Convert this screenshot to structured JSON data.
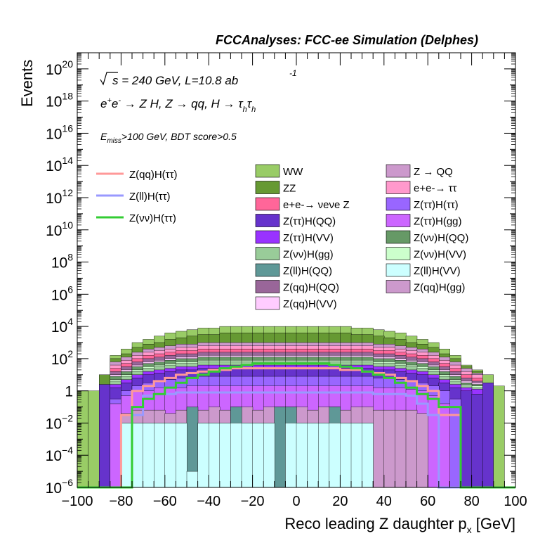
{
  "header": {
    "title": "FCCAnalyses: FCC-ee Simulation (Delphes)"
  },
  "annotations": {
    "sqrt_s": "s = 240 GeV, L=10.8 ab",
    "lumi_exp": "-1",
    "process": "e+e- → Z H, Z → qq, H → τhτh",
    "cuts": "Emiss>100 GeV, BDT score>0.5"
  },
  "chart_data": {
    "type": "histogram",
    "stacked": true,
    "xlabel": "Reco leading Z daughter px [GeV]",
    "ylabel": "Events",
    "xlim": [
      -100,
      100
    ],
    "ylim": [
      1e-06,
      1e+21
    ],
    "log_y": true,
    "bin_width": 5,
    "x_ticks": [
      "−100",
      "−80",
      "−60",
      "−40",
      "−20",
      "0",
      "20",
      "40",
      "60",
      "80",
      "100"
    ],
    "y_ticks": [
      {
        "base": "10",
        "exp": "−6",
        "value": 1e-06
      },
      {
        "base": "10",
        "exp": "−4",
        "value": 0.0001
      },
      {
        "base": "10",
        "exp": "−2",
        "value": 0.01
      },
      {
        "base": "1",
        "exp": "",
        "value": 1
      },
      {
        "base": "10",
        "exp": "2",
        "value": 100.0
      },
      {
        "base": "10",
        "exp": "4",
        "value": 10000.0
      },
      {
        "base": "10",
        "exp": "6",
        "value": 1000000.0
      },
      {
        "base": "10",
        "exp": "8",
        "value": 100000000.0
      },
      {
        "base": "10",
        "exp": "10",
        "value": 10000000000.0
      },
      {
        "base": "10",
        "exp": "12",
        "value": 1000000000000.0
      },
      {
        "base": "10",
        "exp": "14",
        "value": 100000000000000.0
      },
      {
        "base": "10",
        "exp": "16",
        "value": 1e+16
      },
      {
        "base": "10",
        "exp": "18",
        "value": 1e+18
      },
      {
        "base": "10",
        "exp": "20",
        "value": 1e+20
      }
    ],
    "stack_layers_log10_top": [
      {
        "name": "Z(ll)H(VV)",
        "color": "#ccffff",
        "top": [
          -6,
          -6,
          -6,
          -6,
          -2,
          -2,
          -2,
          -2,
          -2,
          -2,
          -5,
          -2,
          -2,
          -2,
          -2,
          -2,
          -2,
          -2,
          -6,
          -2,
          -2,
          -2,
          -2,
          -2,
          -2,
          -2,
          -2,
          -6,
          -6,
          -6,
          -6,
          -6,
          -6,
          -6,
          -6,
          -6,
          -6,
          -6,
          -6,
          -6
        ],
        "start_bin": 0
      },
      {
        "name": "Z(ll)H(QQ)",
        "color": "#5f9897",
        "top": [
          -6,
          -6,
          -6,
          -6,
          -2,
          -2,
          -2,
          -2,
          -2,
          -2,
          -1,
          -2,
          -2,
          -2,
          -1,
          -2,
          -2,
          -2,
          -1,
          -1,
          -2,
          -2,
          -2,
          -1,
          -2,
          -2,
          -2,
          -6,
          -6,
          -6,
          -6,
          -6,
          -6,
          -6,
          -6,
          -6,
          -6,
          -6,
          -6,
          -6
        ]
      },
      {
        "name": "Z(qq)H(gg)",
        "color": "#cc99cc",
        "top": [
          -6,
          -6,
          -6,
          -6,
          -1.4,
          -1.2,
          -1.2,
          -1.2,
          -1.4,
          -1.2,
          -1.2,
          -1.2,
          -1.0,
          -1.2,
          -1.0,
          -1.0,
          -1.2,
          -1.0,
          -1.0,
          -1.0,
          -1.0,
          -1.2,
          -1.0,
          -1.0,
          -1.2,
          -1.0,
          -1.0,
          -1.2,
          -1.2,
          -1.2,
          -1.2,
          -1.4,
          -6,
          -6,
          -6,
          -6,
          -6,
          -6,
          -6,
          -6
        ]
      },
      {
        "name": "Z(ττ)H(gg)",
        "color": "#cc66ff",
        "top": [
          -6,
          -6,
          -6,
          -0.8,
          -0.3,
          0.0,
          0.0,
          0.2,
          0.2,
          0.2,
          0.3,
          0.3,
          0.3,
          0.3,
          0.3,
          0.3,
          0.3,
          0.3,
          0.3,
          0.3,
          0.3,
          0.3,
          0.3,
          0.3,
          0.3,
          0.3,
          0.3,
          0.2,
          0.2,
          0.2,
          0.1,
          0.0,
          -0.3,
          -0.8,
          -6,
          -6,
          -6,
          -6,
          -6,
          -6
        ]
      },
      {
        "name": "Z(ττ)H(ττ)",
        "color": "#9966ff",
        "top": [
          -6,
          -6,
          -6,
          -0.5,
          0.0,
          0.3,
          0.5,
          0.6,
          0.7,
          0.8,
          0.8,
          0.9,
          0.9,
          0.9,
          0.9,
          0.9,
          0.9,
          0.9,
          0.9,
          0.9,
          0.9,
          0.9,
          0.9,
          0.9,
          0.9,
          0.9,
          0.9,
          0.8,
          0.8,
          0.7,
          0.6,
          0.5,
          0.3,
          0.0,
          -0.5,
          -6,
          -6,
          -6,
          -6,
          -6
        ]
      },
      {
        "name": "Z(ττ)H(QQ)",
        "color": "#6633cc",
        "top": [
          -6,
          -6,
          -6,
          0.2,
          0.5,
          0.8,
          1.0,
          1.1,
          1.2,
          1.3,
          1.3,
          1.4,
          1.4,
          1.4,
          1.4,
          1.4,
          1.4,
          1.4,
          1.4,
          1.4,
          1.4,
          1.4,
          1.4,
          1.4,
          1.4,
          1.4,
          1.4,
          1.3,
          1.3,
          1.2,
          1.1,
          1.0,
          0.8,
          0.5,
          0.2,
          0.0,
          -0.2,
          -6,
          -6,
          -6
        ]
      },
      {
        "name": "Z(ττ)H(VV)",
        "color": "#9933ff",
        "top": [
          -6,
          -6,
          -6,
          0.4,
          0.7,
          1.0,
          1.2,
          1.3,
          1.4,
          1.5,
          1.5,
          1.6,
          1.6,
          1.6,
          1.6,
          1.6,
          1.6,
          1.6,
          1.6,
          1.6,
          1.6,
          1.6,
          1.6,
          1.6,
          1.6,
          1.6,
          1.6,
          1.5,
          1.5,
          1.4,
          1.3,
          1.2,
          1.0,
          0.7,
          0.4,
          0.2,
          0.1,
          -6,
          -6,
          -6
        ]
      },
      {
        "name": "Z(νν)H(gg)",
        "color": "#99cc99",
        "top": [
          -6,
          -6,
          -6,
          0.6,
          0.9,
          1.2,
          1.4,
          1.5,
          1.6,
          1.7,
          1.7,
          1.8,
          1.8,
          1.8,
          1.8,
          1.8,
          1.8,
          1.8,
          1.8,
          1.8,
          1.8,
          1.8,
          1.8,
          1.8,
          1.8,
          1.8,
          1.8,
          1.7,
          1.7,
          1.6,
          1.5,
          1.4,
          1.2,
          0.9,
          0.6,
          0.3,
          0.2,
          -6,
          -6,
          -6
        ]
      },
      {
        "name": "Z(νν)H(VV)",
        "color": "#ccffcc",
        "top": [
          -6,
          -6,
          -6,
          0.7,
          1.0,
          1.3,
          1.5,
          1.6,
          1.7,
          1.8,
          1.8,
          1.9,
          1.9,
          1.9,
          1.9,
          1.9,
          1.9,
          1.9,
          1.9,
          1.9,
          1.9,
          1.9,
          1.9,
          1.9,
          1.9,
          1.9,
          1.9,
          1.8,
          1.8,
          1.7,
          1.6,
          1.5,
          1.3,
          1.0,
          0.7,
          0.4,
          0.3,
          -6,
          -6,
          -6
        ]
      },
      {
        "name": "Z(νν)H(QQ)",
        "color": "#669966",
        "top": [
          -6,
          -6,
          -6,
          0.9,
          1.2,
          1.5,
          1.7,
          1.8,
          1.9,
          2.0,
          2.0,
          2.1,
          2.1,
          2.1,
          2.1,
          2.1,
          2.1,
          2.1,
          2.1,
          2.1,
          2.1,
          2.1,
          2.1,
          2.1,
          2.1,
          2.1,
          2.1,
          2.0,
          2.0,
          1.9,
          1.8,
          1.7,
          1.5,
          1.2,
          0.9,
          0.5,
          0.4,
          -6,
          -6,
          -6
        ]
      },
      {
        "name": "Z(qq)H(VV)",
        "color": "#ffccff",
        "top": [
          -6,
          -6,
          -6,
          1.0,
          1.3,
          1.6,
          1.8,
          1.9,
          2.0,
          2.1,
          2.1,
          2.2,
          2.2,
          2.2,
          2.2,
          2.2,
          2.2,
          2.2,
          2.2,
          2.2,
          2.2,
          2.2,
          2.2,
          2.2,
          2.2,
          2.2,
          2.2,
          2.1,
          2.1,
          2.0,
          1.9,
          1.8,
          1.6,
          1.3,
          1.0,
          0.6,
          0.5,
          -6,
          -6,
          -6
        ]
      },
      {
        "name": "Z(qq)H(QQ)",
        "color": "#996699",
        "top": [
          -6,
          -6,
          -6,
          1.2,
          1.5,
          1.8,
          2.0,
          2.1,
          2.2,
          2.3,
          2.3,
          2.4,
          2.4,
          2.4,
          2.4,
          2.4,
          2.4,
          2.4,
          2.4,
          2.4,
          2.4,
          2.4,
          2.4,
          2.4,
          2.4,
          2.4,
          2.4,
          2.3,
          2.3,
          2.2,
          2.1,
          2.0,
          1.8,
          1.5,
          1.2,
          0.8,
          0.6,
          -6,
          -6,
          -6
        ]
      },
      {
        "name": "e+e-→ νeνe Z",
        "color": "#ff6699",
        "top": [
          -6,
          -6,
          -6,
          1.4,
          1.7,
          2.0,
          2.2,
          2.3,
          2.4,
          2.5,
          2.5,
          2.6,
          2.6,
          2.6,
          2.6,
          2.6,
          2.6,
          2.6,
          2.6,
          2.6,
          2.6,
          2.6,
          2.6,
          2.6,
          2.6,
          2.6,
          2.6,
          2.5,
          2.5,
          2.4,
          2.3,
          2.2,
          2.0,
          1.7,
          1.4,
          1.0,
          0.8,
          -6,
          -6,
          -6
        ]
      },
      {
        "name": "e+e-→ ττ",
        "color": "#ff99cc",
        "top": [
          -6,
          -6,
          -6,
          1.6,
          1.9,
          2.2,
          2.4,
          2.5,
          2.6,
          2.7,
          2.7,
          2.8,
          2.8,
          2.8,
          2.8,
          2.8,
          2.8,
          2.8,
          2.8,
          2.8,
          2.8,
          2.8,
          2.8,
          2.8,
          2.8,
          2.8,
          2.8,
          2.7,
          2.7,
          2.6,
          2.5,
          2.4,
          2.2,
          1.9,
          1.6,
          1.2,
          1.0,
          -6,
          -6,
          -6
        ]
      },
      {
        "name": "Z → QQ",
        "color": "#cc99cc",
        "top": [
          -6,
          -6,
          -6,
          1.8,
          2.1,
          2.4,
          2.6,
          2.7,
          2.8,
          2.9,
          2.9,
          3.0,
          3.0,
          3.0,
          3.0,
          3.0,
          3.0,
          3.0,
          3.0,
          3.0,
          3.0,
          3.0,
          3.0,
          3.0,
          3.0,
          3.0,
          3.0,
          2.9,
          2.9,
          2.8,
          2.7,
          2.6,
          2.4,
          2.1,
          1.8,
          1.4,
          1.1,
          -6,
          -6,
          -6
        ]
      },
      {
        "name": "ZZ",
        "color": "#669933",
        "top": [
          -6,
          -6,
          -6,
          2.0,
          2.3,
          2.7,
          2.9,
          3.0,
          3.2,
          3.3,
          3.4,
          3.5,
          3.5,
          3.6,
          3.6,
          3.6,
          3.6,
          3.6,
          3.6,
          3.6,
          3.6,
          3.6,
          3.6,
          3.6,
          3.6,
          3.5,
          3.5,
          3.4,
          3.3,
          3.2,
          3.0,
          2.9,
          2.7,
          2.3,
          2.0,
          1.5,
          1.2,
          -6,
          -6,
          -6
        ]
      },
      {
        "name": "WW",
        "color": "#99cc66",
        "top": [
          -6,
          -6,
          -6,
          2.2,
          2.6,
          3.0,
          3.2,
          3.4,
          3.6,
          3.7,
          3.8,
          3.9,
          3.9,
          4.0,
          4.0,
          4.0,
          4.0,
          4.0,
          4.0,
          4.0,
          4.0,
          4.0,
          4.0,
          4.0,
          4.0,
          3.9,
          3.9,
          3.8,
          3.7,
          3.6,
          3.4,
          3.2,
          3.0,
          2.6,
          2.2,
          1.6,
          1.3,
          -6,
          -6,
          -6
        ]
      }
    ],
    "edge_bins_log10": {
      "WW_bin0": 0.0,
      "WW_bin1": 0.0,
      "ZZ_bin2": 1.0,
      "Ztt_bin2": 0.4,
      "WW_bin37": 1.0,
      "ZZ_bin37": 0.5,
      "WW_bin38": 0.3
    },
    "legend_left": [
      {
        "label": "Z(qq)H(ττ)",
        "color": "#ff9999"
      },
      {
        "label": "Z(ll)H(ττ)",
        "color": "#9999ff"
      },
      {
        "label": "Z(νν)H(ττ)",
        "color": "#33cc33"
      }
    ],
    "legend_mid": [
      {
        "label": "WW",
        "color": "#99cc66"
      },
      {
        "label": "ZZ",
        "color": "#669933"
      },
      {
        "label": "e+e-→ νeνe Z",
        "color": "#ff6699"
      },
      {
        "label": "Z(ττ)H(QQ)",
        "color": "#6633cc"
      },
      {
        "label": "Z(ττ)H(VV)",
        "color": "#9933ff"
      },
      {
        "label": "Z(νν)H(gg)",
        "color": "#99cc99"
      },
      {
        "label": "Z(ll)H(QQ)",
        "color": "#5f9897"
      },
      {
        "label": "Z(qq)H(QQ)",
        "color": "#996699"
      },
      {
        "label": "Z(qq)H(VV)",
        "color": "#ffccff"
      }
    ],
    "legend_right": [
      {
        "label": "Z → QQ",
        "color": "#cc99cc"
      },
      {
        "label": "e+e-→ ττ",
        "color": "#ff99cc"
      },
      {
        "label": "Z(ττ)H(ττ)",
        "color": "#9966ff"
      },
      {
        "label": "Z(ττ)H(gg)",
        "color": "#cc66ff"
      },
      {
        "label": "Z(νν)H(QQ)",
        "color": "#669966"
      },
      {
        "label": "Z(νν)H(VV)",
        "color": "#ccffcc"
      },
      {
        "label": "Z(ll)H(VV)",
        "color": "#ccffff"
      },
      {
        "label": "Z(qq)H(gg)",
        "color": "#cc99cc"
      }
    ],
    "signal_lines_log10": [
      {
        "name": "Z(qq)H(ττ)",
        "color": "#ff9999",
        "values": [
          -6,
          -6,
          -6,
          -6,
          -1.5,
          0.0,
          0.3,
          0.6,
          0.8,
          1.0,
          1.1,
          1.2,
          1.3,
          1.3,
          1.4,
          1.4,
          1.4,
          1.4,
          1.4,
          1.4,
          1.4,
          1.4,
          1.4,
          1.4,
          1.3,
          1.3,
          1.2,
          1.1,
          1.0,
          0.8,
          0.6,
          0.3,
          0.0,
          -1.5,
          -1.5,
          -6,
          -6,
          -6,
          -6,
          -6
        ]
      },
      {
        "name": "Z(ll)H(ττ)",
        "color": "#9999ff",
        "values": [
          -6,
          -6,
          -6,
          -6,
          -6,
          -1.5,
          -0.3,
          -0.2,
          -0.2,
          -0.1,
          -0.1,
          -0.1,
          -0.1,
          -0.1,
          -0.1,
          -0.1,
          -0.1,
          -0.1,
          -0.1,
          -0.1,
          -0.1,
          -0.1,
          -0.1,
          -0.1,
          -0.1,
          -0.1,
          -0.1,
          -0.2,
          -0.2,
          -0.2,
          -0.3,
          -0.8,
          -1.5,
          -6,
          -6,
          -6,
          -6,
          -6,
          -6,
          -6
        ]
      },
      {
        "name": "Z(νν)H(ττ)",
        "color": "#33cc33",
        "values": [
          -6,
          -6,
          -6,
          -6,
          -6,
          -1.0,
          -0.5,
          -0.2,
          0.2,
          0.5,
          0.8,
          1.0,
          1.2,
          1.4,
          1.5,
          1.6,
          1.7,
          1.7,
          1.7,
          1.7,
          1.7,
          1.7,
          1.7,
          1.6,
          1.5,
          1.4,
          1.2,
          1.0,
          0.8,
          0.5,
          0.2,
          -0.2,
          -0.5,
          -1.0,
          -1.0,
          -6,
          -6,
          -6,
          -6,
          -6
        ]
      }
    ]
  }
}
